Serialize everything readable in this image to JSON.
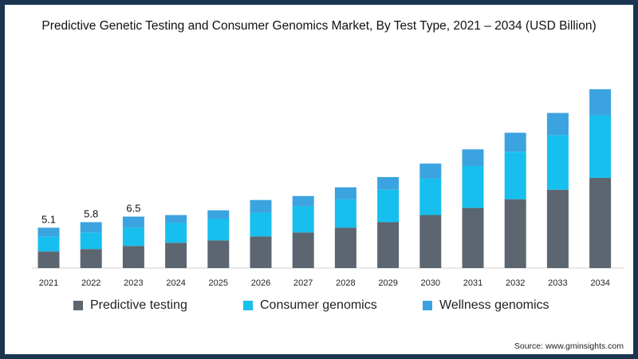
{
  "title": "Predictive Genetic Testing and Consumer Genomics Market, By Test Type, 2021 – 2034 (USD Billion)",
  "source": "Source: www.gminsights.com",
  "colors": {
    "background_border": "#1a3550",
    "predictive": "#5c6670",
    "consumer": "#17bfee",
    "wellness": "#3ba3df"
  },
  "chart_data": {
    "type": "bar",
    "stacked": true,
    "categories": [
      "2021",
      "2022",
      "2023",
      "2024",
      "2025",
      "2026",
      "2027",
      "2028",
      "2029",
      "2030",
      "2031",
      "2032",
      "2033",
      "2034"
    ],
    "series": [
      {
        "name": "Predictive testing",
        "values": [
          2.1,
          2.4,
          2.8,
          3.2,
          3.5,
          4.0,
          4.5,
          5.1,
          5.8,
          6.7,
          7.6,
          8.7,
          9.9,
          11.4
        ]
      },
      {
        "name": "Consumer genomics",
        "values": [
          1.9,
          2.1,
          2.3,
          2.5,
          2.7,
          3.0,
          3.3,
          3.6,
          4.1,
          4.6,
          5.3,
          6.0,
          6.9,
          7.9
        ]
      },
      {
        "name": "Wellness genomics",
        "values": [
          1.1,
          1.3,
          1.4,
          1.0,
          1.1,
          1.6,
          1.3,
          1.5,
          1.6,
          1.9,
          2.1,
          2.4,
          2.8,
          3.3
        ]
      }
    ],
    "totals_labeled": [
      "5.1",
      "5.8",
      "6.5",
      null,
      null,
      null,
      null,
      null,
      null,
      null,
      null,
      null,
      null,
      null
    ],
    "ylim": [
      0,
      25
    ],
    "grid": false,
    "legend_position": "bottom"
  }
}
